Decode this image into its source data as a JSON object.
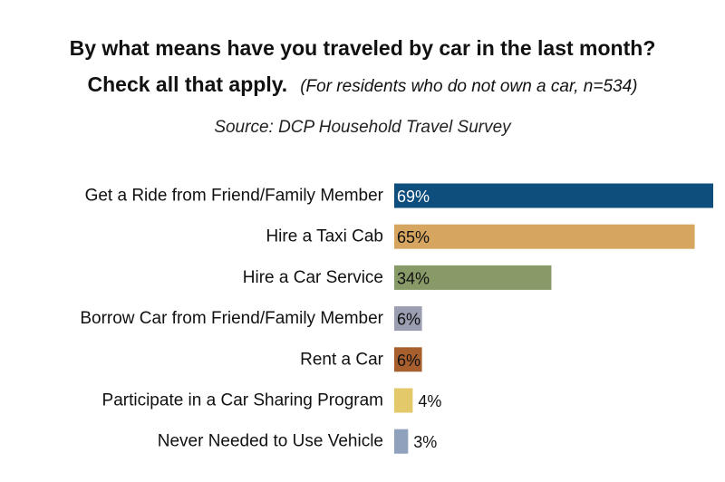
{
  "header": {
    "title_line1": "By what means have you traveled by car in the last month?",
    "title_line2_bold": "Check all that apply.",
    "title_line2_note": "(For residents who do not own a car, n=534)",
    "source": "Source: DCP Household Travel Survey"
  },
  "chart_data": {
    "type": "bar",
    "orientation": "horizontal",
    "title": "By what means have you traveled by car in the last month? Check all that apply.",
    "subtitle": "(For residents who do not own a car, n=534)",
    "source": "Source: DCP Household Travel Survey",
    "xlabel": "",
    "ylabel": "",
    "unit": "%",
    "xlim": [
      0,
      69
    ],
    "grid": false,
    "legend": "none",
    "categories": [
      "Get a Ride from Friend/Family Member",
      "Hire a Taxi Cab",
      "Hire a Car Service",
      "Borrow Car from Friend/Family Member",
      "Rent a Car",
      "Participate in a Car Sharing Program",
      "Never Needed to Use Vehicle"
    ],
    "values": [
      69,
      65,
      34,
      6,
      6,
      4,
      3
    ],
    "value_labels": [
      "69%",
      "65%",
      "34%",
      "6%",
      "6%",
      "4%",
      "3%"
    ],
    "colors": [
      "#0e4e7c",
      "#d6a55f",
      "#879a67",
      "#9b9db1",
      "#a75f2e",
      "#e3c96a",
      "#8fa1bd"
    ],
    "label_colors": [
      "#ffffff",
      "#111111",
      "#111111",
      "#111111",
      "#111111",
      "#111111",
      "#111111"
    ]
  }
}
